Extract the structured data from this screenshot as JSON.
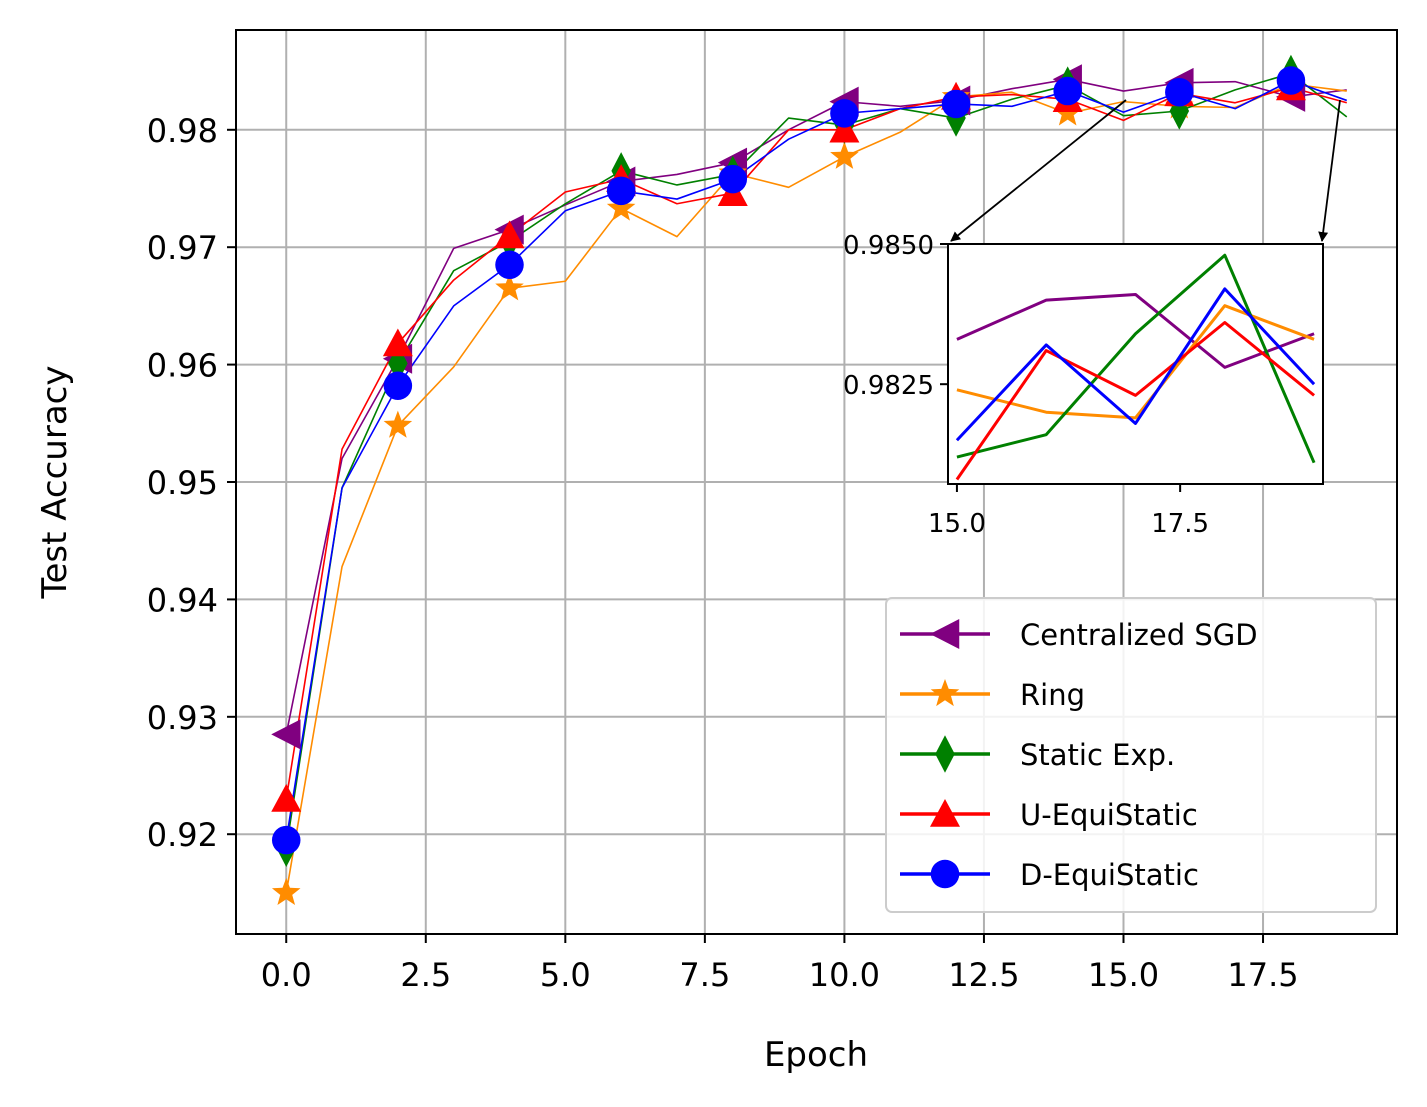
{
  "chart_data": {
    "type": "line",
    "title": "",
    "xlabel": "Epoch",
    "ylabel": "Test Accuracy",
    "xlim": [
      -0.9,
      19.9
    ],
    "ylim": [
      0.9115,
      0.9885
    ],
    "x_ticks": [
      "0.0",
      "2.5",
      "5.0",
      "7.5",
      "10.0",
      "12.5",
      "15.0",
      "17.5"
    ],
    "y_ticks": [
      "0.92",
      "0.93",
      "0.94",
      "0.95",
      "0.96",
      "0.97",
      "0.98"
    ],
    "grid": true,
    "legend_position": "lower-right",
    "x": [
      0,
      1,
      2,
      3,
      4,
      5,
      6,
      7,
      8,
      9,
      10,
      11,
      12,
      13,
      14,
      15,
      16,
      17,
      18,
      19
    ],
    "series": [
      {
        "name": "Centralized SGD",
        "color": "#800080",
        "marker": "triangle-left",
        "values": [
          0.9285,
          0.952,
          0.9605,
          0.9699,
          0.9715,
          0.9736,
          0.9756,
          0.9762,
          0.9772,
          0.98,
          0.9824,
          0.982,
          0.9825,
          0.9835,
          0.9843,
          0.9833,
          0.984,
          0.9841,
          0.9828,
          0.9834
        ]
      },
      {
        "name": "Ring",
        "color": "#ff8c00",
        "marker": "star",
        "values": [
          0.915,
          0.9428,
          0.9548,
          0.9598,
          0.9665,
          0.9671,
          0.9733,
          0.9709,
          0.9763,
          0.9751,
          0.9777,
          0.9798,
          0.9828,
          0.9832,
          0.9814,
          0.9824,
          0.982,
          0.9819,
          0.9839,
          0.9833
        ]
      },
      {
        "name": "Static Exp.",
        "color": "#008000",
        "marker": "diamond",
        "values": [
          0.9188,
          0.9495,
          0.9601,
          0.968,
          0.9705,
          0.9737,
          0.9765,
          0.9753,
          0.9762,
          0.981,
          0.9804,
          0.9818,
          0.981,
          0.9826,
          0.9838,
          0.9812,
          0.9816,
          0.9834,
          0.9848,
          0.9811
        ]
      },
      {
        "name": "U-EquiStatic",
        "color": "#ff0000",
        "marker": "triangle-up",
        "values": [
          0.923,
          0.9528,
          0.9618,
          0.9672,
          0.971,
          0.9747,
          0.9758,
          0.9737,
          0.9746,
          0.98,
          0.98,
          0.9818,
          0.9828,
          0.983,
          0.9826,
          0.9808,
          0.9831,
          0.9823,
          0.9836,
          0.9823
        ]
      },
      {
        "name": "D-EquiStatic",
        "color": "#0000ff",
        "marker": "circle",
        "values": [
          0.9195,
          0.9495,
          0.9582,
          0.965,
          0.9685,
          0.9731,
          0.9748,
          0.9741,
          0.9758,
          0.9792,
          0.9814,
          0.9818,
          0.9822,
          0.982,
          0.9833,
          0.9815,
          0.9832,
          0.9818,
          0.9842,
          0.9825
        ]
      }
    ],
    "inset": {
      "xlim": [
        14.9,
        19.1
      ],
      "ylim": [
        0.98072,
        0.985
      ],
      "x_ticks": [
        "15.0",
        "17.5"
      ],
      "y_ticks": [
        "0.9850",
        "0.9825"
      ]
    }
  }
}
